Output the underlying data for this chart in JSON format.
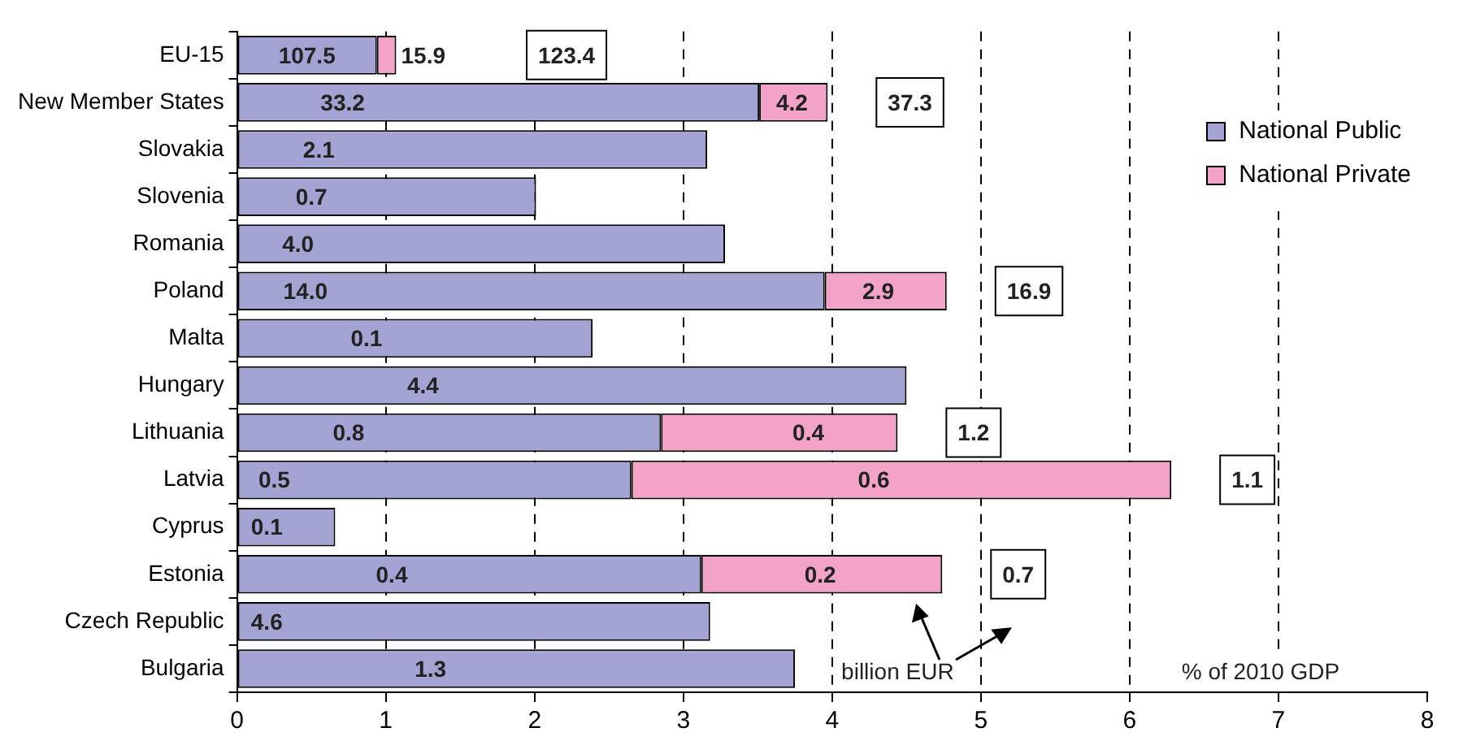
{
  "chart_data": {
    "type": "bar",
    "orientation": "horizontal",
    "stacked": true,
    "categories": [
      "EU-15",
      "New Member States",
      "Slovakia",
      "Slovenia",
      "Romania",
      "Poland",
      "Malta",
      "Hungary",
      "Lithuania",
      "Latvia",
      "Cyprus",
      "Estonia",
      "Czech Republic",
      "Bulgaria"
    ],
    "series": [
      {
        "name": "National Public",
        "color": "#a3a3d4",
        "values": [
          0.94,
          3.51,
          3.16,
          2.01,
          3.28,
          3.95,
          2.39,
          4.5,
          2.85,
          2.65,
          0.66,
          3.12,
          3.18,
          3.75
        ]
      },
      {
        "name": "National Private",
        "color": "#f4a3c8",
        "values": [
          0.13,
          0.46,
          null,
          null,
          null,
          0.82,
          null,
          null,
          1.59,
          3.63,
          null,
          1.62,
          null,
          null
        ]
      }
    ],
    "xlim": [
      0,
      8
    ],
    "xticks": [
      0,
      1,
      2,
      3,
      4,
      5,
      6,
      7,
      8
    ],
    "grid": "x",
    "legend": "top right",
    "annotations": [
      "billion EUR",
      "% of 2010 GDP",
      "123.4",
      {
        "text": "107.5",
        "x": 0.47,
        "y": "EU-15"
      },
      {
        "text": "15.9",
        "x": 1.07,
        "y": "EU-15"
      },
      {
        "text": "33.2",
        "x": 0.71,
        "y": "New Member States"
      },
      {
        "text": "4.2",
        "x": 3.73,
        "y": "New Member States"
      },
      {
        "text": "37.3",
        "x": 3.97,
        "y": "New Member States"
      },
      {
        "text": "2.1",
        "x": 0.55,
        "y": "Slovakia"
      },
      {
        "text": "0.7",
        "x": 0.5,
        "y": "Slovenia"
      },
      {
        "text": "4.0",
        "x": 0.41,
        "y": "Romania"
      },
      {
        "text": "14.0",
        "x": 0.46,
        "y": "Poland"
      },
      {
        "text": "2.9",
        "x": 4.31,
        "y": "Poland"
      },
      {
        "text": "16.9",
        "x": 4.77,
        "y": "Poland"
      },
      {
        "text": "0.1",
        "x": 0.87,
        "y": "Malta"
      },
      {
        "text": "4.4",
        "x": 1.25,
        "y": "Hungary"
      },
      {
        "text": "0.8",
        "x": 0.75,
        "y": "Lithuania"
      },
      {
        "text": "0.4",
        "x": 3.84,
        "y": "Lithuania"
      },
      {
        "text": "1.2",
        "x": 4.44,
        "y": "Lithuania"
      },
      {
        "text": "0.5",
        "x": 0.25,
        "y": "Latvia"
      },
      {
        "text": "0.6",
        "x": 4.28,
        "y": "Latvia"
      },
      {
        "text": "1.1",
        "x": 6.28,
        "y": "Latvia"
      },
      {
        "text": "0.1",
        "x": 0.2,
        "y": "Cyprus"
      },
      {
        "text": "0.4",
        "x": 1.04,
        "y": "Estonia"
      },
      {
        "text": "0.2",
        "x": 3.92,
        "y": "Estonia"
      },
      {
        "text": "0.7",
        "x": 4.74,
        "y": "Estonia"
      },
      {
        "text": "4.6",
        "x": 0.2,
        "y": "Czech Republic"
      },
      {
        "text": "1.3",
        "x": 1.3,
        "y": "Bulgaria"
      }
    ]
  }
}
